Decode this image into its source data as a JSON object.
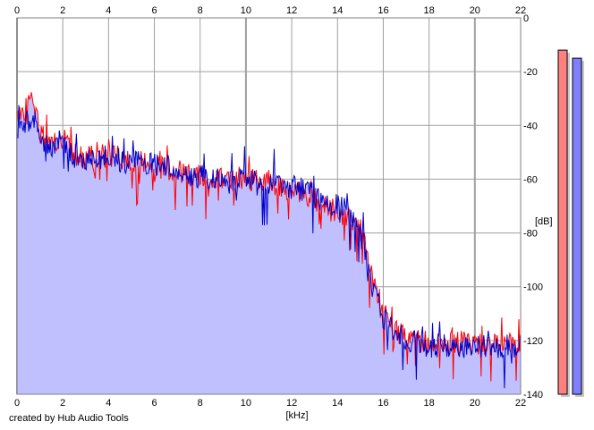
{
  "chart_data": {
    "type": "area",
    "xlabel": "[kHz]",
    "ylabel": "[dB]",
    "xlim": [
      0,
      22
    ],
    "ylim": [
      -140,
      0
    ],
    "xticks": [
      0,
      2,
      4,
      6,
      8,
      10,
      12,
      14,
      16,
      18,
      20,
      22
    ],
    "yticks": [
      0,
      -20,
      -40,
      -60,
      -80,
      -100,
      -120,
      -140
    ],
    "grid": true,
    "fill_color": "#c0c0ff",
    "series": [
      {
        "color": "#ff0000",
        "x": [
          0,
          0.2,
          0.4,
          0.6,
          0.8,
          1.0,
          1.5,
          2.0,
          2.5,
          3.0,
          3.5,
          4.0,
          4.5,
          5.0,
          5.5,
          6.0,
          6.5,
          7.0,
          7.5,
          8.0,
          8.5,
          9.0,
          9.5,
          10.0,
          10.5,
          11.0,
          11.5,
          12.0,
          12.5,
          13.0,
          13.5,
          14.0,
          14.5,
          15.0,
          15.3,
          15.6,
          16.0,
          16.5,
          17.0,
          18.0,
          19.0,
          20.0,
          21.0,
          22.0
        ],
        "y": [
          -40,
          -36,
          -33,
          -30,
          -35,
          -42,
          -47,
          -45,
          -51,
          -53,
          -50,
          -52,
          -52,
          -53,
          -54,
          -55,
          -56,
          -57,
          -57,
          -58,
          -60,
          -60,
          -60,
          -59,
          -61,
          -61,
          -63,
          -65,
          -65,
          -67,
          -70,
          -73,
          -74,
          -79,
          -87,
          -102,
          -110,
          -116,
          -119,
          -121,
          -121,
          -121,
          -121,
          -121
        ]
      },
      {
        "color": "#0000c8",
        "x": [
          0,
          0.2,
          0.4,
          0.6,
          0.8,
          1.0,
          1.5,
          2.0,
          2.5,
          3.0,
          3.5,
          4.0,
          4.5,
          5.0,
          5.5,
          6.0,
          6.5,
          7.0,
          7.5,
          8.0,
          8.5,
          9.0,
          9.5,
          10.0,
          10.5,
          11.0,
          11.5,
          12.0,
          12.5,
          13.0,
          13.5,
          14.0,
          14.5,
          15.0,
          15.3,
          15.6,
          16.0,
          16.5,
          17.0,
          18.0,
          19.0,
          20.0,
          21.0,
          22.0
        ],
        "y": [
          -41,
          -39,
          -38,
          -38,
          -39,
          -45,
          -48,
          -46,
          -52,
          -54,
          -52,
          -52,
          -53,
          -54,
          -54,
          -55,
          -56,
          -57,
          -58,
          -59,
          -60,
          -61,
          -61,
          -59,
          -62,
          -61,
          -62,
          -63,
          -64,
          -66,
          -70,
          -70,
          -72,
          -80,
          -90,
          -103,
          -111,
          -117,
          -120,
          -122,
          -122,
          -122,
          -122,
          -122
        ]
      }
    ],
    "meters": [
      {
        "color": "#ff8080",
        "level_db": -12
      },
      {
        "color": "#8080ff",
        "level_db": -15
      }
    ]
  },
  "credit": "created by Hub Audio Tools"
}
